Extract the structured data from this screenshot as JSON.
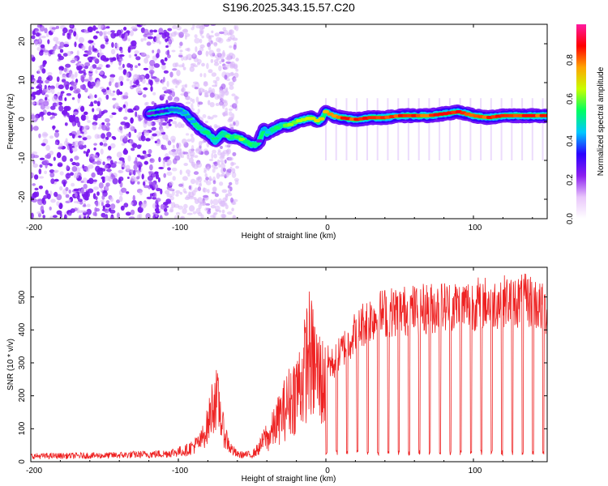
{
  "chart_data": [
    {
      "type": "heatmap",
      "title": "S196.2025.343.15.57.C20",
      "xlabel": "Height of straight line (km)",
      "ylabel": "Frequency (Hz)",
      "xlim": [
        -200,
        150
      ],
      "ylim": [
        -25,
        25
      ],
      "xticks": [
        "-200",
        "-100",
        "0",
        "100"
      ],
      "yticks": [
        "20",
        "10",
        "0",
        "-10",
        "-20"
      ],
      "colorbar": {
        "label": "Normalized spectral amplitude",
        "range": [
          0,
          1
        ],
        "ticks": [
          "0.0",
          "0.2",
          "0.4",
          "0.6",
          "0.8"
        ],
        "colormap": [
          "#ffffff",
          "#e9c6fb",
          "#8b1ef0",
          "#2a00ff",
          "#00c8ff",
          "#00ff60",
          "#c8ff00",
          "#ffa500",
          "#ff0000",
          "#ff1aa0"
        ]
      },
      "ridge": {
        "x": [
          -120,
          -105,
          -100,
          -95,
          -90,
          -85,
          -80,
          -75,
          -70,
          -65,
          -60,
          -55,
          -50,
          -47,
          -45,
          -42,
          -40,
          -35,
          -30,
          -25,
          -20,
          -15,
          -10,
          -5,
          -2,
          0,
          5,
          10,
          20,
          30,
          40,
          50,
          60,
          70,
          80,
          90,
          100,
          110,
          120,
          130,
          140,
          150
        ],
        "y": [
          2,
          3,
          3,
          2,
          0,
          -2,
          -3,
          -5,
          -3,
          -4,
          -4,
          -5,
          -6,
          -6,
          -5,
          -2,
          -3,
          -2,
          -1,
          -1,
          0,
          0.5,
          1,
          0,
          1,
          2.5,
          1.5,
          1,
          0.5,
          1,
          1,
          1.5,
          1.5,
          1.5,
          2,
          2.5,
          1.5,
          1,
          1.5,
          1.5,
          1.5,
          1.5
        ],
        "intensity": [
          0.25,
          0.35,
          0.45,
          0.45,
          0.45,
          0.5,
          0.5,
          0.5,
          0.55,
          0.55,
          0.6,
          0.6,
          0.55,
          0.55,
          0.3,
          0.45,
          0.45,
          0.5,
          0.55,
          0.6,
          0.65,
          0.7,
          0.75,
          0.7,
          0.75,
          0.8,
          0.8,
          0.85,
          0.85,
          0.85,
          0.85,
          0.85,
          0.85,
          0.85,
          0.9,
          0.9,
          0.85,
          0.85,
          0.85,
          0.85,
          0.85,
          0.85
        ]
      },
      "noise_region_x": [
        -200,
        -60
      ]
    },
    {
      "type": "line",
      "xlabel": "Height of straight line (km)",
      "ylabel": "SNR (10 * v/v)",
      "xlim": [
        -200,
        150
      ],
      "ylim": [
        0,
        590
      ],
      "xticks": [
        "-200",
        "-100",
        "0",
        "100"
      ],
      "yticks": [
        "0",
        "100",
        "200",
        "300",
        "400",
        "500"
      ],
      "color": "#ee2222",
      "envelope": {
        "x": [
          -200,
          -150,
          -110,
          -95,
          -85,
          -80,
          -77,
          -75,
          -72,
          -70,
          -65,
          -60,
          -50,
          -45,
          -40,
          -35,
          -30,
          -25,
          -20,
          -15,
          -12,
          -10,
          -5,
          0,
          5,
          10,
          15,
          20,
          25,
          30,
          40,
          60,
          80,
          100,
          120,
          140,
          150
        ],
        "y": [
          20,
          22,
          28,
          40,
          70,
          130,
          200,
          230,
          190,
          120,
          50,
          25,
          25,
          50,
          100,
          160,
          220,
          280,
          330,
          400,
          520,
          480,
          400,
          350,
          340,
          380,
          420,
          450,
          480,
          500,
          520,
          530,
          540,
          550,
          560,
          560,
          520
        ]
      },
      "dropout_start_x": 0,
      "dropout_spacing": 7,
      "dropout_level": 20
    }
  ]
}
